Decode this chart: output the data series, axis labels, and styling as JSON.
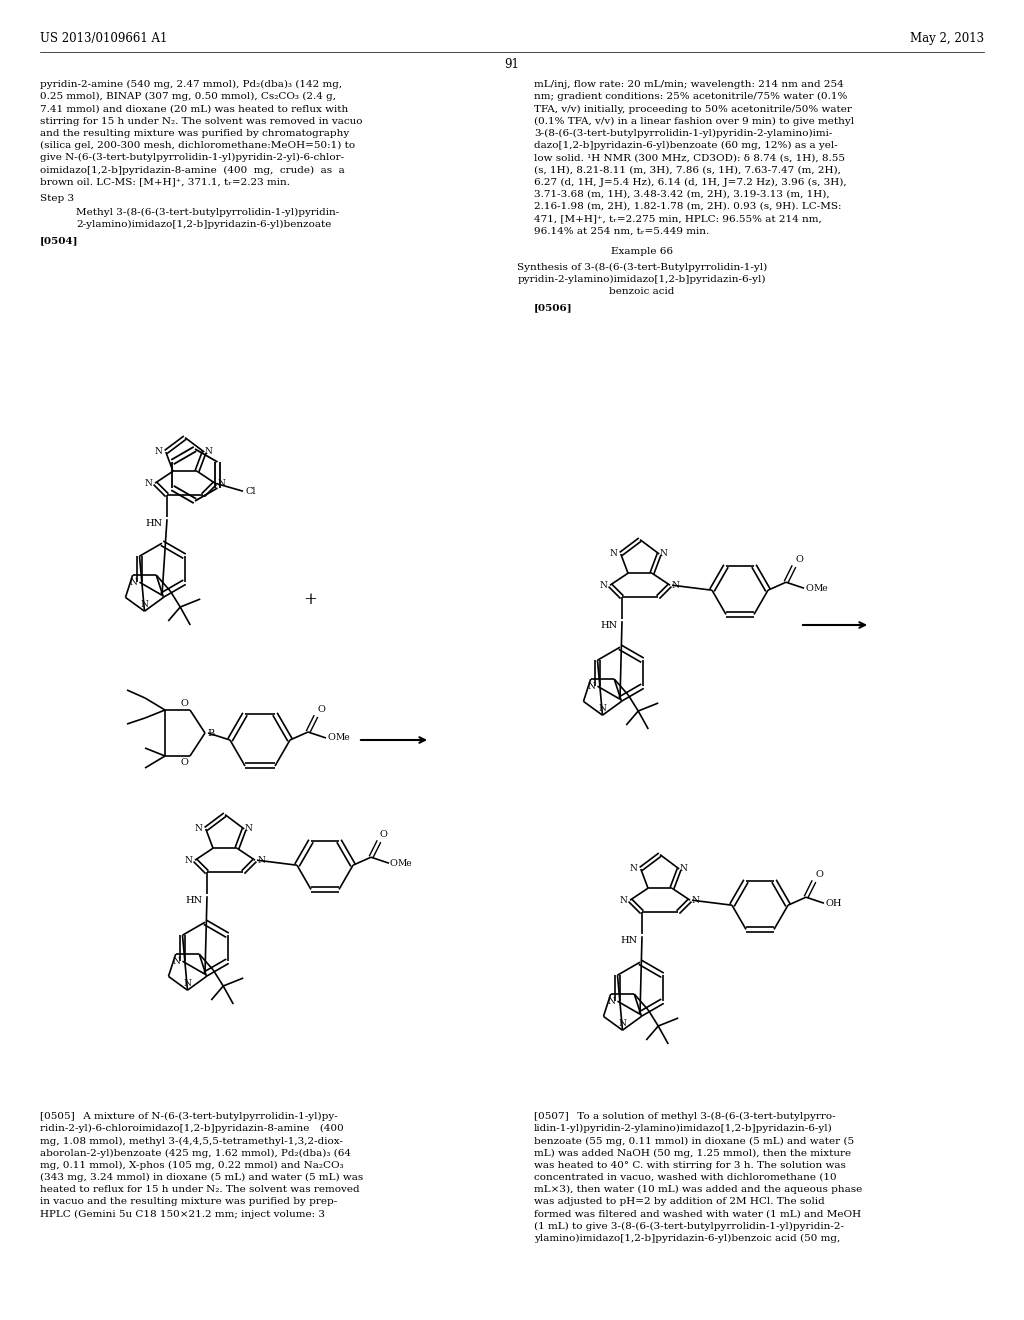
{
  "page_header_left": "US 2013/0109661 A1",
  "page_header_right": "May 2, 2013",
  "page_number": "91",
  "background_color": "#ffffff",
  "left_col_text_1": [
    "pyridin-2-amine (540 mg, 2.47 mmol), Pd₂(dba)₃ (142 mg,",
    "0.25 mmol), BINAP (307 mg, 0.50 mmol), Cs₂CO₃ (2.4 g,",
    "7.41 mmol) and dioxane (20 mL) was heated to reflux with",
    "stirring for 15 h under N₂. The solvent was removed in vacuo",
    "and the resulting mixture was purified by chromatography",
    "(silica gel, 200-300 mesh, dichloromethane:MeOH=50:1) to",
    "give N-(6-(3-tert-butylpyrrolidin-1-yl)pyridin-2-yl)-6-chlor-",
    "oimidazo[1,2-b]pyridazin-8-amine  (400  mg,  crude)  as  a",
    "brown oil. LC-MS: [M+H]⁺, 371.1, tᵣ=2.23 min."
  ],
  "right_col_text_1": [
    "mL/inj, flow rate: 20 mL/min; wavelength: 214 nm and 254",
    "nm; gradient conditions: 25% acetonitrile/75% water (0.1%",
    "TFA, v/v) initially, proceeding to 50% acetonitrile/50% water",
    "(0.1% TFA, v/v) in a linear fashion over 9 min) to give methyl",
    "3-(8-(6-(3-tert-butylpyrrolidin-1-yl)pyridin-2-ylamino)imi-",
    "dazo[1,2-b]pyridazin-6-yl)benzoate (60 mg, 12%) as a yel-",
    "low solid. ¹H NMR (300 MHz, CD3OD): δ 8.74 (s, 1H), 8.55",
    "(s, 1H), 8.21-8.11 (m, 3H), 7.86 (s, 1H), 7.63-7.47 (m, 2H),",
    "6.27 (d, 1H, J=5.4 Hz), 6.14 (d, 1H, J=7.2 Hz), 3.96 (s, 3H),",
    "3.71-3.68 (m, 1H), 3.48-3.42 (m, 2H), 3.19-3.13 (m, 1H),",
    "2.16-1.98 (m, 2H), 1.82-1.78 (m, 2H). 0.93 (s, 9H). LC-MS:",
    "471, [M+H]⁺, tᵣ=2.275 min, HPLC: 96.55% at 214 nm,",
    "96.14% at 254 nm, tᵣ=5.449 min."
  ],
  "para0505": "[0505]  A mixture of N-(6-(3-tert-butylpyrrolidin-1-yl)py-\nridin-2-yl)-6-chloroimidazo[1,2-b]pyridazin-8-amine (400\nmg, 1.08 mmol), methyl 3-(4,4,5,5-tetramethyl-1,3,2-diox-\naborolan-2-yl)benzoate (425 mg, 1.62 mmol), Pd₂(dba)₃ (64\nmg, 0.11 mmol), X-phos (105 mg, 0.22 mmol) and Na₂CO₃\n(343 mg, 3.24 mmol) in dioxane (5 mL) and water (5 mL) was\nheated to reflux for 15 h under N₂. The solvent was removed\nin vacuo and the resulting mixture was purified by prep-\nHPLC (Gemini 5u C18 150×21.2 mm; inject volume: 3",
  "para0507": "[0507]  To a solution of methyl 3-(8-(6-(3-tert-butylpyrro-\nlidin-1-yl)pyridin-2-ylamino)imidazo[1,2-b]pyridazin-6-yl)\nbenzoate (55 mg, 0.11 mmol) in dioxane (5 mL) and water (5\nmL) was added NaOH (50 mg, 1.25 mmol), then the mixture\nwas heated to 40° C. with stirring for 3 h. The solution was\nconcentrated in vacuo, washed with dichloromethane (10\nmL×3), then water (10 mL) was added and the aqueous phase\nwas adjusted to pH=2 by addition of 2M HCl. The solid\nformed was filtered and washed with water (1 mL) and MeOH\n(1 mL) to give 3-(8-(6-(3-tert-butylpyrrolidin-1-yl)pyridin-2-\nylamino)imidazo[1,2-b]pyridazin-6-yl)benzoic acid (50 mg,"
}
